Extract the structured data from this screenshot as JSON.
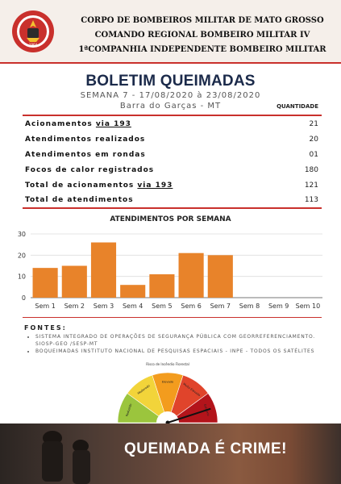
{
  "header": {
    "line1": "CORPO DE BOMBEIROS MILITAR DE MATO GROSSO",
    "line2": "COMANDO REGIONAL BOMBEIRO MILITAR IV",
    "line3": "1ªCOMPANHIA INDEPENDENTE BOMBEIRO MILITAR",
    "emblem_year": "1964"
  },
  "report": {
    "title": "BOLETIM QUEIMADAS",
    "week": "SEMANA 7 - 17/08/2020 à 23/08/2020",
    "location": "Barra do Garças - MT",
    "qty_header": "QUANTIDADE"
  },
  "rows": [
    {
      "label": "Acionamentos ",
      "link": "via 193",
      "value": "21"
    },
    {
      "label": "Atendimentos realizados",
      "value": "20"
    },
    {
      "label": "Atendimentos em rondas",
      "value": "01"
    },
    {
      "label": "Focos de calor registrados",
      "value": "180"
    },
    {
      "label": "Total de acionamentos ",
      "link": "via 193",
      "value": "121"
    },
    {
      "label": "Total de atendimentos",
      "value": "113"
    }
  ],
  "chart_data": {
    "type": "bar",
    "title": "ATENDIMENTOS POR SEMANA",
    "categories": [
      "Sem 1",
      "Sem 2",
      "Sem 3",
      "Sem 4",
      "Sem 5",
      "Sem 6",
      "Sem 7",
      "Sem 8",
      "Sem 9",
      "Sem 10"
    ],
    "values": [
      14,
      15,
      26,
      6,
      11,
      21,
      20,
      null,
      null,
      null
    ],
    "ylim": [
      0,
      30
    ],
    "yticks": [
      0,
      10,
      20,
      30
    ],
    "grid": true,
    "color": "#e8832a"
  },
  "sources": {
    "heading": "FONTES:",
    "items": [
      "SISTEMA INTEGRADO DE OPERAÇÕES DE SEGURANÇA PÚBLICA COM GEORREFERENCIAMENTO. SIOSP-GEO /SESP-MT",
      "BOQUEIMADAS INSTITUTO NACIONAL DE PESQUISAS ESPACIAIS - INPE - TODOS OS SATÉLITES"
    ]
  },
  "gauge": {
    "title": "Risco de Incêndio Florestal",
    "labels": [
      "Reduzido",
      "Moderado",
      "Elevado",
      "Muito Elevado",
      "Extremo"
    ],
    "colors": [
      "#9bc53d",
      "#f2d43a",
      "#f39c1e",
      "#e0442b",
      "#b3141b"
    ],
    "level": 0.9
  },
  "banner": {
    "text": "QUEIMADA É CRIME!"
  }
}
